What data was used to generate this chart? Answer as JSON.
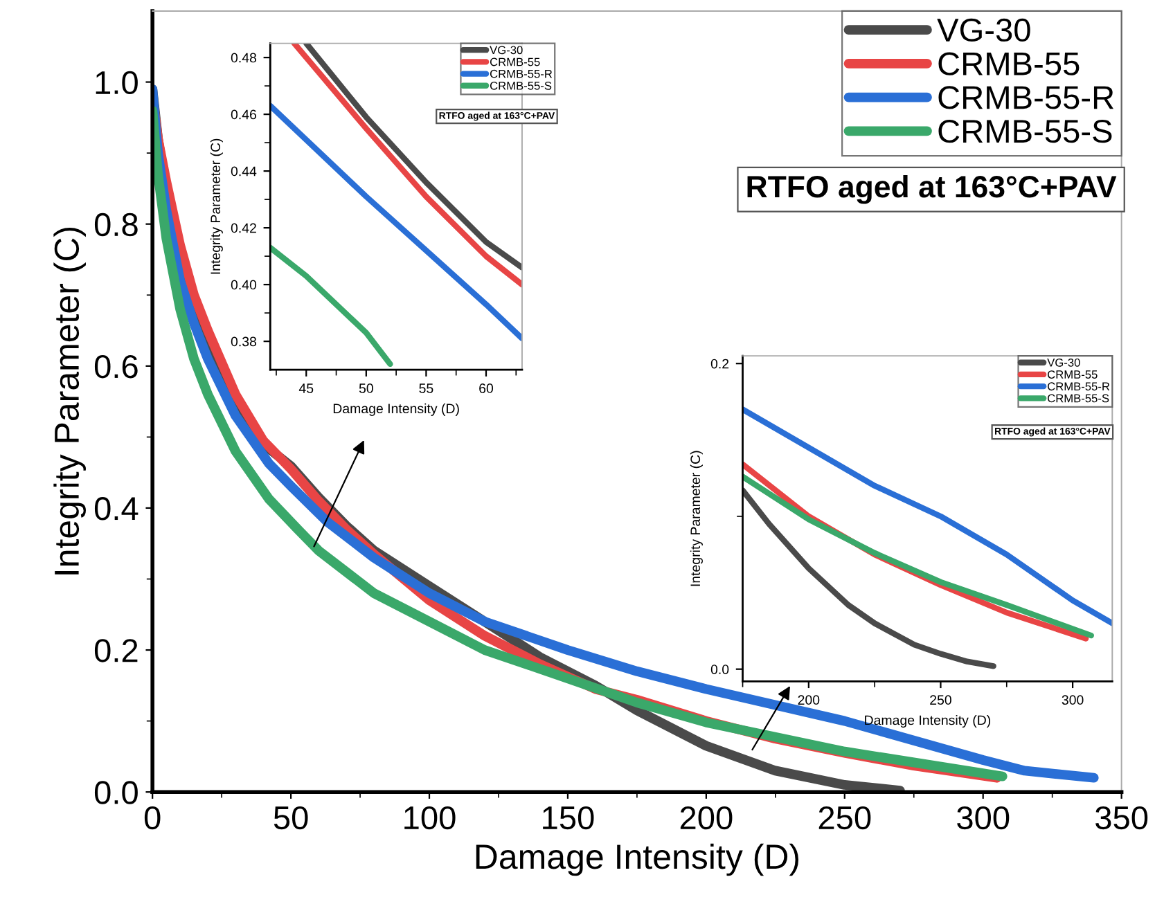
{
  "chart_data": [
    {
      "type": "line",
      "xlabel": "Damage Intensity (D)",
      "ylabel": "Integrity Parameter (C)",
      "xlim": [
        0,
        350
      ],
      "ylim": [
        0,
        1.1
      ],
      "xticks": [
        0,
        {
          "value": 25,
          "label": null
        },
        50,
        {
          "value": 75,
          "label": null
        },
        100,
        {
          "value": 125,
          "label": null
        },
        150,
        {
          "value": 175,
          "label": null
        },
        200,
        {
          "value": 225,
          "label": null
        },
        250,
        {
          "value": 275,
          "label": null
        },
        300,
        {
          "value": 325,
          "label": null
        },
        350
      ],
      "yticks": [
        {
          "value": 0,
          "label": "0.0"
        },
        {
          "value": 0.1,
          "label": null
        },
        0.2,
        {
          "value": 0.3,
          "label": null
        },
        0.4,
        {
          "value": 0.5,
          "label": null
        },
        0.6,
        {
          "value": 0.7,
          "label": null
        },
        0.8,
        {
          "value": 0.9,
          "label": null
        },
        {
          "value": 1,
          "label": "1.0"
        }
      ],
      "legend": "top right",
      "grid": false,
      "annotations": [
        "RTFO aged at 163°C+PAV"
      ],
      "series": [
        {
          "name": "VG-30",
          "color": "#4a4a4a",
          "x": [
            0,
            2,
            5,
            10,
            15,
            20,
            30,
            40,
            50,
            60,
            70,
            80,
            100,
            120,
            140,
            160,
            175,
            200,
            225,
            250,
            270
          ],
          "values": [
            0.99,
            0.92,
            0.85,
            0.76,
            0.69,
            0.64,
            0.55,
            0.49,
            0.459,
            0.415,
            0.375,
            0.34,
            0.29,
            0.24,
            0.19,
            0.15,
            0.115,
            0.065,
            0.03,
            0.01,
            0.002
          ]
        },
        {
          "name": "CRMB-55",
          "color": "#e84545",
          "x": [
            0,
            2,
            5,
            10,
            15,
            20,
            30,
            40,
            50,
            60,
            70,
            80,
            100,
            120,
            140,
            160,
            175,
            200,
            225,
            250,
            275,
            305
          ],
          "values": [
            0.98,
            0.92,
            0.86,
            0.77,
            0.7,
            0.65,
            0.56,
            0.495,
            0.455,
            0.41,
            0.37,
            0.335,
            0.27,
            0.22,
            0.18,
            0.145,
            0.13,
            0.1,
            0.075,
            0.055,
            0.037,
            0.02
          ]
        },
        {
          "name": "CRMB-55-R",
          "color": "#2a6fd6",
          "x": [
            0,
            2,
            5,
            10,
            15,
            20,
            30,
            42,
            50,
            63,
            80,
            100,
            120,
            150,
            175,
            200,
            250,
            300,
            315,
            340
          ],
          "values": [
            0.99,
            0.9,
            0.82,
            0.72,
            0.66,
            0.61,
            0.53,
            0.463,
            0.431,
            0.381,
            0.33,
            0.28,
            0.24,
            0.2,
            0.17,
            0.145,
            0.1,
            0.045,
            0.03,
            0.02
          ]
        },
        {
          "name": "CRMB-55-S",
          "color": "#3aa86a",
          "x": [
            0,
            2,
            5,
            10,
            15,
            20,
            30,
            42,
            52,
            60,
            80,
            100,
            120,
            150,
            175,
            200,
            250,
            307
          ],
          "values": [
            0.96,
            0.87,
            0.78,
            0.68,
            0.61,
            0.56,
            0.48,
            0.413,
            0.372,
            0.34,
            0.28,
            0.24,
            0.2,
            0.16,
            0.126,
            0.098,
            0.057,
            0.022
          ]
        }
      ]
    },
    {
      "type": "line",
      "xlabel": "Damage Intensity (D)",
      "ylabel": "Integrity Parameter (C)",
      "xlim": [
        42,
        63
      ],
      "ylim": [
        0.37,
        0.485
      ],
      "xticks": [
        {
          "value": 42.5,
          "label": null
        },
        45,
        {
          "value": 47.5,
          "label": null
        },
        50,
        {
          "value": 52.5,
          "label": null
        },
        55,
        {
          "value": 57.5,
          "label": null
        },
        60,
        {
          "value": 62.5,
          "label": null
        }
      ],
      "yticks": [
        0.38,
        {
          "value": 0.39,
          "label": null
        },
        {
          "value": 0.4,
          "label": "0.40"
        },
        {
          "value": 0.41,
          "label": null
        },
        0.42,
        {
          "value": 0.43,
          "label": null
        },
        0.44,
        {
          "value": 0.45,
          "label": null
        },
        0.46,
        {
          "value": 0.47,
          "label": null
        },
        0.48
      ],
      "legend": "top right",
      "grid": false,
      "annotations": [
        "RTFO aged at 163°C+PAV"
      ],
      "series": [
        {
          "name": "VG-30",
          "color": "#4a4a4a",
          "x": [
            45,
            50,
            55,
            60,
            63
          ],
          "values": [
            0.485,
            0.459,
            0.436,
            0.415,
            0.406
          ]
        },
        {
          "name": "CRMB-55",
          "color": "#e84545",
          "x": [
            44,
            45,
            50,
            55,
            60,
            63
          ],
          "values": [
            0.485,
            0.48,
            0.455,
            0.431,
            0.41,
            0.4
          ]
        },
        {
          "name": "CRMB-55-R",
          "color": "#2a6fd6",
          "x": [
            42,
            45,
            50,
            55,
            60,
            63
          ],
          "values": [
            0.463,
            0.451,
            0.431,
            0.412,
            0.393,
            0.381
          ]
        },
        {
          "name": "CRMB-55-S",
          "color": "#3aa86a",
          "x": [
            42,
            45,
            50,
            52
          ],
          "values": [
            0.413,
            0.403,
            0.383,
            0.372
          ]
        }
      ]
    },
    {
      "type": "line",
      "xlabel": "Damage Intensity (D)",
      "ylabel": "Integrity Parameter (C)",
      "xlim": [
        175,
        315
      ],
      "ylim": [
        -0.008,
        0.205
      ],
      "xticks": [
        {
          "value": 175,
          "label": null
        },
        200,
        {
          "value": 225,
          "label": null
        },
        250,
        {
          "value": 275,
          "label": null
        },
        300
      ],
      "yticks": [
        {
          "value": 0,
          "label": "0.0"
        },
        {
          "value": 0.1,
          "label": null
        },
        0.2
      ],
      "legend": "top right",
      "grid": false,
      "annotations": [
        "RTFO aged at 163°C+PAV"
      ],
      "series": [
        {
          "name": "VG-30",
          "color": "#4a4a4a",
          "x": [
            175,
            185,
            200,
            215,
            225,
            240,
            250,
            260,
            270
          ],
          "values": [
            0.117,
            0.095,
            0.066,
            0.042,
            0.03,
            0.016,
            0.01,
            0.005,
            0.002
          ]
        },
        {
          "name": "CRMB-55",
          "color": "#e84545",
          "x": [
            175,
            200,
            225,
            250,
            275,
            305
          ],
          "values": [
            0.134,
            0.1,
            0.075,
            0.055,
            0.037,
            0.02
          ]
        },
        {
          "name": "CRMB-55-R",
          "color": "#2a6fd6",
          "x": [
            175,
            200,
            225,
            250,
            275,
            300,
            315
          ],
          "values": [
            0.17,
            0.145,
            0.12,
            0.1,
            0.075,
            0.045,
            0.03
          ]
        },
        {
          "name": "CRMB-55-S",
          "color": "#3aa86a",
          "x": [
            175,
            200,
            225,
            250,
            275,
            307
          ],
          "values": [
            0.126,
            0.098,
            0.076,
            0.057,
            0.042,
            0.022
          ]
        }
      ]
    }
  ]
}
